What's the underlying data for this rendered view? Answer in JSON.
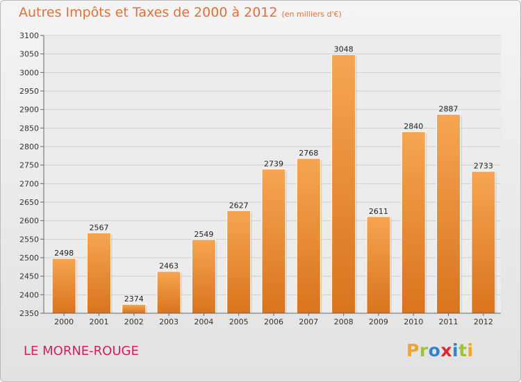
{
  "header": {
    "title": "Autres Impôts et Taxes de 2000 à 2012",
    "subtitle": "(en milliers d'€)"
  },
  "footer": {
    "place": "LE MORNE-ROUGE",
    "logo_text": "Proxiti"
  },
  "colors": {
    "bar_light": "#f6a552",
    "bar_dark": "#d9741c",
    "title": "#e0703a",
    "place": "#d51f5c",
    "logo": [
      "#f2a51f",
      "#9ac43a",
      "#2e85c7",
      "#e3262e",
      "#2e85c7",
      "#9ac43a",
      "#f2a51f"
    ]
  },
  "chart_data": {
    "type": "bar",
    "title": "Autres Impôts et Taxes de 2000 à 2012",
    "subtitle": "(en milliers d'€)",
    "categories": [
      "2000",
      "2001",
      "2002",
      "2003",
      "2004",
      "2005",
      "2006",
      "2007",
      "2008",
      "2009",
      "2010",
      "2011",
      "2012"
    ],
    "values": [
      2498,
      2567,
      2374,
      2463,
      2549,
      2627,
      2739,
      2768,
      3048,
      2611,
      2840,
      2887,
      2733
    ],
    "ylim": [
      2350,
      3100
    ],
    "yticks": [
      2350,
      2400,
      2450,
      2500,
      2550,
      2600,
      2650,
      2700,
      2750,
      2800,
      2850,
      2900,
      2950,
      3000,
      3050,
      3100
    ],
    "grid": true,
    "data_labels": true
  }
}
